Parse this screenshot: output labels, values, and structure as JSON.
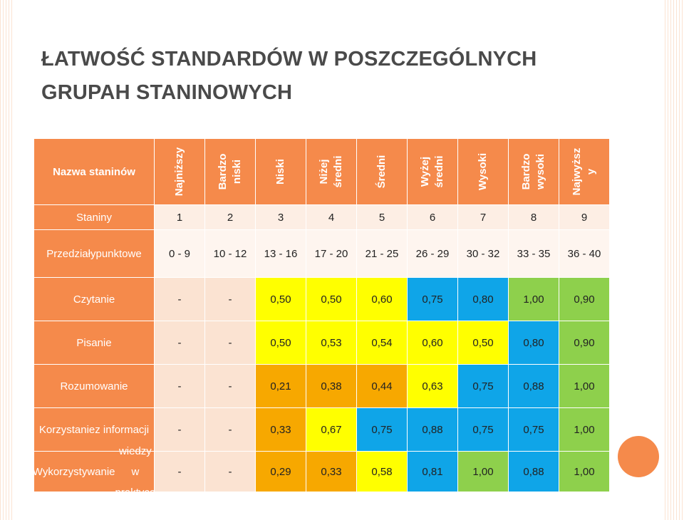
{
  "title": {
    "line1": "ŁATWOŚĆ STANDARDÓW W POSZCZEGÓLNYCH",
    "line2": "GRUPAH STANINOWYCH"
  },
  "table": {
    "corner_label": "Nazwa staninów",
    "column_names": [
      [
        "Najniższy"
      ],
      [
        "Bardzo",
        "niski"
      ],
      [
        "Niski"
      ],
      [
        "Niżej",
        "średni"
      ],
      [
        "Średni"
      ],
      [
        "Wyżej",
        "średni"
      ],
      [
        "Wysoki"
      ],
      [
        "Bardzo",
        "wysoki"
      ],
      [
        "Najwyższ",
        "y"
      ]
    ],
    "staniny_label": "Staniny",
    "staniny": [
      "1",
      "2",
      "3",
      "4",
      "5",
      "6",
      "7",
      "8",
      "9"
    ],
    "przedzialy_label": [
      "Przedziały",
      "punktowe"
    ],
    "przedzialy": [
      "0 - 9",
      "10 - 12",
      "13 - 16",
      "17 - 20",
      "21 - 25",
      "26 - 29",
      "30 - 32",
      "33 - 35",
      "36 - 40"
    ],
    "rows": [
      {
        "label": [
          "Czytanie"
        ],
        "values": [
          "-",
          "-",
          "0,50",
          "0,50",
          "0,60",
          "0,75",
          "0,80",
          "1,00",
          "0,90"
        ]
      },
      {
        "label": [
          "Pisanie"
        ],
        "values": [
          "-",
          "-",
          "0,50",
          "0,53",
          "0,54",
          "0,60",
          "0,50",
          "0,80",
          "0,90"
        ]
      },
      {
        "label": [
          "Rozumowanie"
        ],
        "values": [
          "-",
          "-",
          "0,21",
          "0,38",
          "0,44",
          "0,63",
          "0,75",
          "0,88",
          "1,00"
        ]
      },
      {
        "label": [
          "Korzystanie",
          "z informacji"
        ],
        "values": [
          "-",
          "-",
          "0,33",
          "0,67",
          "0,75",
          "0,88",
          "0,75",
          "0,75",
          "1,00"
        ]
      },
      {
        "label": [
          "Wykorzystywanie",
          "wiedzy w praktyce"
        ],
        "values": [
          "-",
          "-",
          "0,29",
          "0,33",
          "0,58",
          "0,81",
          "1,00",
          "0,88",
          "1,00"
        ]
      }
    ]
  },
  "colors": {
    "header_orange": "#f58a4b",
    "light": "#fdeee4",
    "lighter": "#fef5ef",
    "difficult": "#f7a800",
    "medium": "#ffff00",
    "easy": "#0fa5e8",
    "very_easy": "#8ed04c",
    "dash": "#fbe3d2"
  }
}
